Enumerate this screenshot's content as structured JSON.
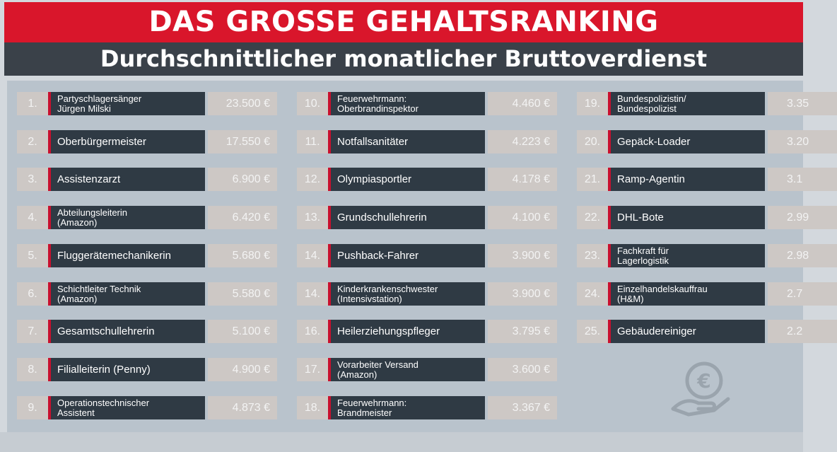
{
  "title": "DAS GROSSE GEHALTSRANKING",
  "subtitle": "Durchschnittlicher monatlicher Bruttoverdienst",
  "columns": [
    [
      {
        "rank": "1.",
        "job": "Partyschlagersänger\nJürgen Milski",
        "salary": "23.500 €"
      },
      {
        "rank": "2.",
        "job": "Oberbürgermeister",
        "salary": "17.550 €"
      },
      {
        "rank": "3.",
        "job": "Assistenzarzt",
        "salary": "6.900 €"
      },
      {
        "rank": "4.",
        "job": "Abteilungsleiterin\n(Amazon)",
        "salary": "6.420 €"
      },
      {
        "rank": "5.",
        "job": "Fluggerätemechanikerin",
        "salary": "5.680 €"
      },
      {
        "rank": "6.",
        "job": "Schichtleiter Technik\n(Amazon)",
        "salary": "5.580 €"
      },
      {
        "rank": "7.",
        "job": "Gesamtschullehrerin",
        "salary": "5.100 €"
      },
      {
        "rank": "8.",
        "job": "Filialleiterin (Penny)",
        "salary": "4.900 €"
      },
      {
        "rank": "9.",
        "job": "Operationstechnischer\nAssistent",
        "salary": "4.873 €"
      }
    ],
    [
      {
        "rank": "10.",
        "job": "Feuerwehrmann:\nOberbrandinspektor",
        "salary": "4.460 €"
      },
      {
        "rank": "11.",
        "job": "Notfallsanitäter",
        "salary": "4.223 €"
      },
      {
        "rank": "12.",
        "job": "Olympiasportler",
        "salary": "4.178 €"
      },
      {
        "rank": "13.",
        "job": "Grundschullehrerin",
        "salary": "4.100 €"
      },
      {
        "rank": "14.",
        "job": "Pushback-Fahrer",
        "salary": "3.900 €"
      },
      {
        "rank": "14.",
        "job": "Kinderkrankenschwester\n(Intensivstation)",
        "salary": "3.900 €"
      },
      {
        "rank": "16.",
        "job": "Heilerziehungspfleger",
        "salary": "3.795 €"
      },
      {
        "rank": "17.",
        "job": "Vorarbeiter Versand\n(Amazon)",
        "salary": "3.600 €"
      },
      {
        "rank": "18.",
        "job": "Feuerwehrmann:\nBrandmeister",
        "salary": "3.367 €"
      }
    ],
    [
      {
        "rank": "19.",
        "job": "Bundespolizistin/\nBundespolizist",
        "salary": "3.35"
      },
      {
        "rank": "20.",
        "job": "Gepäck-Loader",
        "salary": "3.20"
      },
      {
        "rank": "21.",
        "job": "Ramp-Agentin",
        "salary": "3.1"
      },
      {
        "rank": "22.",
        "job": "DHL-Bote",
        "salary": "2.99"
      },
      {
        "rank": "23.",
        "job": "Fachkraft für\nLagerlogistik",
        "salary": "2.98"
      },
      {
        "rank": "24.",
        "job": "Einzelhandelskauffrau\n(H&M)",
        "salary": "2.7"
      },
      {
        "rank": "25.",
        "job": "Gebäudereiniger",
        "salary": "2.2"
      }
    ]
  ],
  "icon": "hand-holding-euro-coin-icon",
  "colors": {
    "title_bg": "#d9162b",
    "subtitle_bg": "#3a4149",
    "panel_bg": "#b9c3cc",
    "job_bg": "#2f3a44",
    "accent": "#c8102e",
    "cell_bg": "#cdc8c5"
  }
}
